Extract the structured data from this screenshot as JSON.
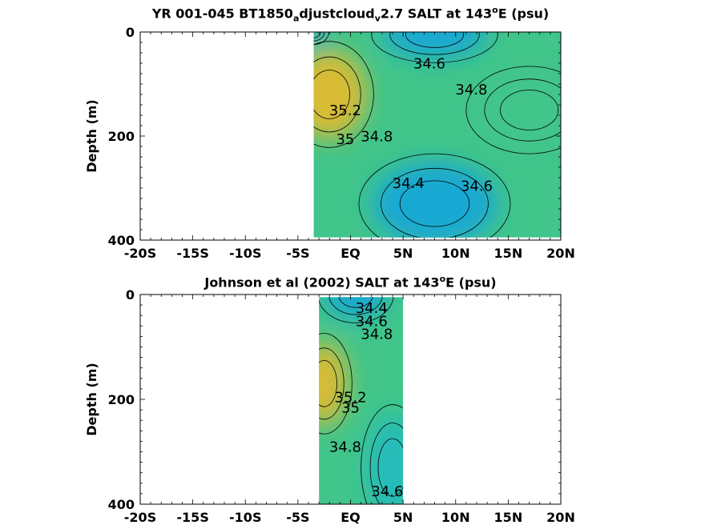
{
  "colors": {
    "low": "#19a7d6",
    "mid": "#21bcbc",
    "mid2": "#41c58a",
    "high": "#97cc3a",
    "warm": "#e1bb2f",
    "peak": "#f3b12f",
    "contour": "#000000"
  },
  "chart_data": [
    {
      "type": "heatmap",
      "title_parts": [
        "YR 001-045 BT1850",
        "a",
        "djustcloud",
        "v",
        "2.7 SALT at 143",
        "o",
        "E (psu)"
      ],
      "ylabel": "Depth (m)",
      "xlim": [
        -20,
        20
      ],
      "ylim": [
        400,
        0
      ],
      "x_ticks": [
        -20,
        -15,
        -10,
        -5,
        0,
        5,
        10,
        15,
        20
      ],
      "x_tick_labels": [
        "-20S",
        "-15S",
        "-10S",
        "-5S",
        "EQ",
        "5N",
        "10N",
        "15N",
        "20N"
      ],
      "y_ticks": [
        0,
        200,
        400
      ],
      "y_tick_labels": [
        "0",
        "200",
        "400"
      ],
      "data_extent": {
        "x": [
          -3.5,
          20
        ],
        "y": [
          0,
          395
        ]
      },
      "features": [
        {
          "x": -3.5,
          "y": 0,
          "value": 34.0,
          "rx": 1.2,
          "ry": 20
        },
        {
          "x": 8,
          "y": 5,
          "value": 34.4,
          "rx": 5,
          "ry": 45
        },
        {
          "x": 8,
          "y": 330,
          "value": 34.3,
          "rx": 6,
          "ry": 80
        },
        {
          "x": -2,
          "y": 120,
          "value": 35.35,
          "rx": 3.5,
          "ry": 85
        },
        {
          "x": 17,
          "y": 150,
          "value": 34.9,
          "rx": 5,
          "ry": 70
        }
      ],
      "contour_labels": [
        {
          "text": "34.6",
          "x": 7.5,
          "y": 70
        },
        {
          "text": "34.8",
          "x": 11.5,
          "y": 120
        },
        {
          "text": "35.2",
          "x": -0.5,
          "y": 160
        },
        {
          "text": "35",
          "x": -0.5,
          "y": 215
        },
        {
          "text": "34.8",
          "x": 2.5,
          "y": 210
        },
        {
          "text": "34.4",
          "x": 5.5,
          "y": 300
        },
        {
          "text": "34.6",
          "x": 12,
          "y": 305
        }
      ]
    },
    {
      "type": "heatmap",
      "title_parts": [
        "Johnson et al (2002) SALT at 143",
        "o",
        "E (psu)"
      ],
      "ylabel": "Depth (m)",
      "xlim": [
        -20,
        20
      ],
      "ylim": [
        400,
        0
      ],
      "x_ticks": [
        -20,
        -15,
        -10,
        -5,
        0,
        5,
        10,
        15,
        20
      ],
      "x_tick_labels": [
        "-20S",
        "-15S",
        "-10S",
        "-5S",
        "EQ",
        "5N",
        "10N",
        "15N",
        "20N"
      ],
      "y_ticks": [
        0,
        200,
        400
      ],
      "y_tick_labels": [
        "0",
        "200",
        "400"
      ],
      "data_extent": {
        "x": [
          -3,
          5
        ],
        "y": [
          5,
          400
        ]
      },
      "features": [
        {
          "x": 0.5,
          "y": 0,
          "value": 34.25,
          "rx": 3,
          "ry": 45
        },
        {
          "x": -2.5,
          "y": 170,
          "value": 35.4,
          "rx": 2.2,
          "ry": 80
        },
        {
          "x": 4,
          "y": 330,
          "value": 34.55,
          "rx": 2.5,
          "ry": 100
        }
      ],
      "contour_labels": [
        {
          "text": "34.4",
          "x": 2,
          "y": 35
        },
        {
          "text": "34.6",
          "x": 2,
          "y": 60
        },
        {
          "text": "34.8",
          "x": 2.5,
          "y": 85
        },
        {
          "text": "35.2",
          "x": 0,
          "y": 205
        },
        {
          "text": "35",
          "x": 0,
          "y": 225
        },
        {
          "text": "34.8",
          "x": -0.5,
          "y": 300
        },
        {
          "text": "34.6",
          "x": 3.5,
          "y": 385
        }
      ]
    }
  ]
}
